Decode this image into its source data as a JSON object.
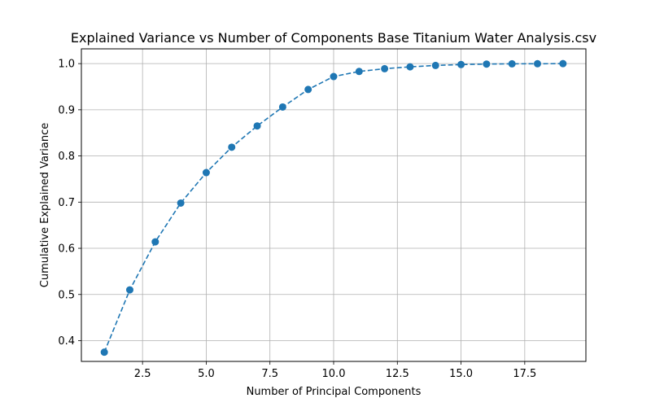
{
  "chart_data": {
    "type": "line",
    "title": "Explained Variance vs Number of Components Base Titanium Water Analysis.csv",
    "xlabel": "Number of Principal Components",
    "ylabel": "Cumulative Explained Variance",
    "xlim": [
      0.1,
      19.9
    ],
    "ylim": [
      0.355,
      1.032
    ],
    "xticks": [
      2.5,
      5.0,
      7.5,
      10.0,
      12.5,
      15.0,
      17.5
    ],
    "xtick_labels": [
      "2.5",
      "5.0",
      "7.5",
      "10.0",
      "12.5",
      "15.0",
      "17.5"
    ],
    "yticks": [
      0.4,
      0.5,
      0.6,
      0.7,
      0.8,
      0.9,
      1.0
    ],
    "ytick_labels": [
      "0.4",
      "0.5",
      "0.6",
      "0.7",
      "0.8",
      "0.9",
      "1.0"
    ],
    "grid": true,
    "series": [
      {
        "x": [
          1,
          2,
          3,
          4,
          5,
          6,
          7,
          8,
          9,
          10,
          11,
          12,
          13,
          14,
          15,
          16,
          17,
          18,
          19
        ],
        "y": [
          0.375,
          0.51,
          0.614,
          0.698,
          0.764,
          0.819,
          0.865,
          0.906,
          0.944,
          0.972,
          0.983,
          0.989,
          0.993,
          0.996,
          0.998,
          0.999,
          0.9995,
          0.9998,
          1.0
        ],
        "color": "#1f77b4",
        "line_style": "dashed",
        "marker": "circle"
      }
    ]
  }
}
